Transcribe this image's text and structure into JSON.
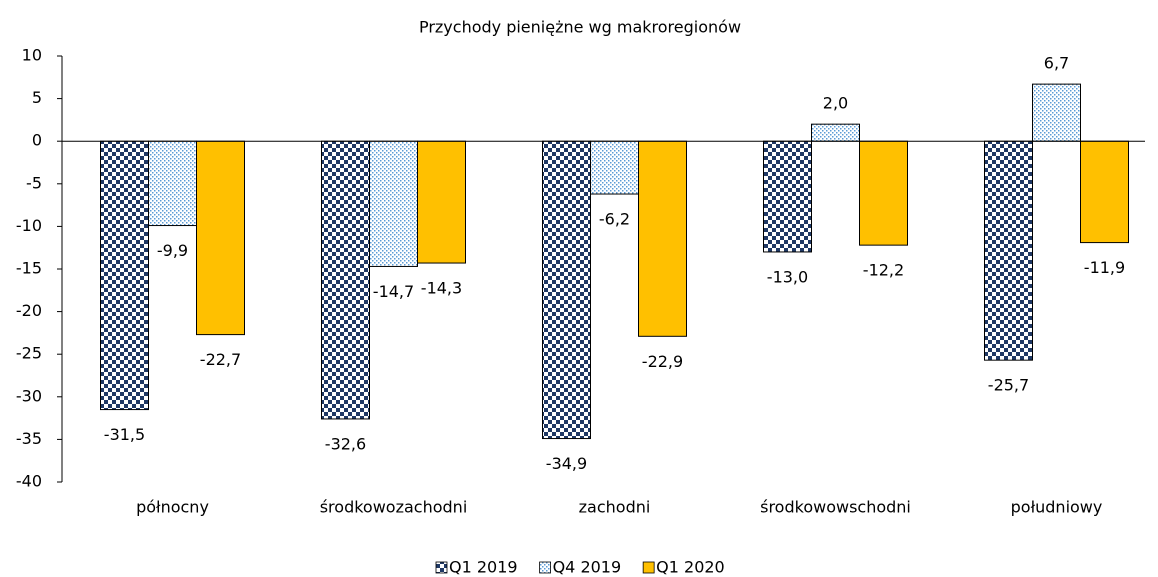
{
  "chart_data": {
    "type": "bar",
    "title": "Przychody pieniężne wg makroregionów",
    "categories": [
      "północny",
      "środkowozachodni",
      "zachodni",
      "środkowowschodni",
      "południowy"
    ],
    "series": [
      {
        "name": "Q1 2019",
        "color": "#1f3864",
        "pattern": "checker",
        "values": [
          -31.5,
          -32.6,
          -34.9,
          -13.0,
          -25.7
        ],
        "value_labels": [
          "-31,5",
          "-32,6",
          "-34,9",
          "-13,0",
          "-25,7"
        ]
      },
      {
        "name": "Q4 2019",
        "color": "#5b9bd5",
        "pattern": "dots",
        "values": [
          -9.9,
          -14.7,
          -6.2,
          2.0,
          6.7
        ],
        "value_labels": [
          "-9,9",
          "-14,7",
          "-6,2",
          "2,0",
          "6,7"
        ]
      },
      {
        "name": "Q1 2020",
        "color": "#ffc000",
        "pattern": "solid",
        "values": [
          -22.7,
          -14.3,
          -22.9,
          -12.2,
          -11.9
        ],
        "value_labels": [
          "-22,7",
          "-14,3",
          "-22,9",
          "-12,2",
          "-11,9"
        ]
      }
    ],
    "ylim": [
      -40,
      10
    ],
    "yticks": [
      10,
      5,
      0,
      -5,
      -10,
      -15,
      -20,
      -25,
      -30,
      -35,
      -40
    ],
    "grid": false,
    "legend": "bottom"
  }
}
